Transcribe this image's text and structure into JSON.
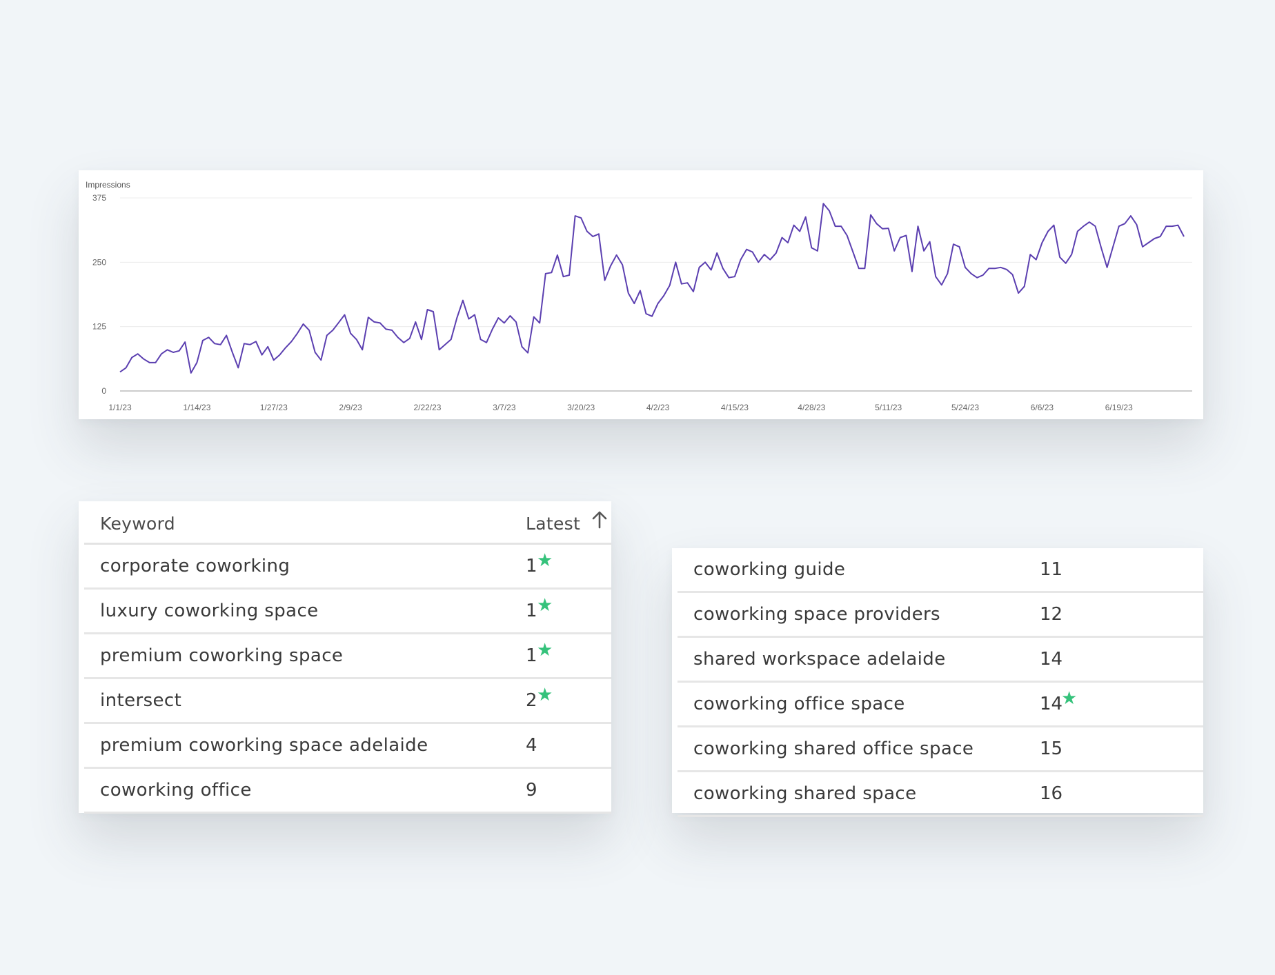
{
  "chart_data": {
    "type": "line",
    "ylabel": "Impressions",
    "y_ticks": [
      0,
      125,
      250,
      375
    ],
    "ylim": [
      0,
      375
    ],
    "x_tick_labels": [
      "1/1/23",
      "1/14/23",
      "1/27/23",
      "2/9/23",
      "2/22/23",
      "3/7/23",
      "3/20/23",
      "4/2/23",
      "4/15/23",
      "4/28/23",
      "5/11/23",
      "5/24/23",
      "6/6/23",
      "6/19/23"
    ],
    "x_tick_days": [
      0,
      13,
      26,
      39,
      52,
      65,
      78,
      91,
      104,
      117,
      130,
      143,
      156,
      169
    ],
    "x_start": "2023-01-01",
    "x_end": "2023-06-30",
    "color": "#5b3fb0",
    "series": [
      {
        "values": [
          37,
          45,
          65,
          72,
          62,
          55,
          55,
          72,
          80,
          75,
          78,
          95,
          35,
          55,
          98,
          104,
          92,
          90,
          108,
          75,
          45,
          92,
          90,
          96,
          70,
          86,
          60,
          70,
          84,
          96,
          112,
          130,
          118,
          75,
          60,
          108,
          118,
          133,
          148,
          112,
          100,
          80,
          143,
          134,
          132,
          120,
          118,
          104,
          94,
          102,
          134,
          100,
          158,
          154,
          80,
          90,
          100,
          142,
          176,
          140,
          148,
          100,
          94,
          120,
          142,
          132,
          146,
          134,
          86,
          74,
          144,
          132,
          228,
          230,
          264,
          222,
          225,
          340,
          336,
          310,
          300,
          305,
          215,
          243,
          264,
          245,
          190,
          170,
          195,
          150,
          145,
          170,
          185,
          205,
          250,
          208,
          210,
          193,
          240,
          250,
          235,
          268,
          238,
          220,
          222,
          255,
          275,
          270,
          250,
          265,
          255,
          268,
          298,
          288,
          322,
          310,
          338,
          278,
          272,
          364,
          350,
          320,
          320,
          302,
          270,
          238,
          238,
          342,
          325,
          315,
          316,
          272,
          298,
          302,
          232,
          320,
          272,
          290,
          222,
          206,
          228,
          285,
          280,
          240,
          228,
          220,
          225,
          238,
          238,
          240,
          236,
          226,
          190,
          203,
          265,
          255,
          288,
          310,
          322,
          260,
          248,
          265,
          310,
          320,
          328,
          320,
          278,
          240,
          280,
          320,
          325,
          340,
          323,
          280,
          288,
          296,
          300,
          320,
          320,
          322,
          300
        ]
      }
    ]
  },
  "table_left": {
    "header": {
      "keyword": "Keyword",
      "latest": "Latest"
    },
    "rows": [
      {
        "keyword": "corporate coworking",
        "latest": "1",
        "star": true
      },
      {
        "keyword": "luxury coworking space",
        "latest": "1",
        "star": true
      },
      {
        "keyword": "premium coworking space",
        "latest": "1",
        "star": true
      },
      {
        "keyword": "intersect",
        "latest": "2",
        "star": true
      },
      {
        "keyword": "premium coworking space adelaide",
        "latest": "4",
        "star": false
      },
      {
        "keyword": "coworking office",
        "latest": "9",
        "star": false
      }
    ]
  },
  "table_right": {
    "rows": [
      {
        "keyword": "coworking guide",
        "latest": "11",
        "star": false
      },
      {
        "keyword": "coworking space providers",
        "latest": "12",
        "star": false
      },
      {
        "keyword": "shared workspace adelaide",
        "latest": "14",
        "star": false
      },
      {
        "keyword": "coworking office space",
        "latest": "14",
        "star": true
      },
      {
        "keyword": "coworking shared office space",
        "latest": "15",
        "star": false
      },
      {
        "keyword": "coworking shared space",
        "latest": "16",
        "star": false
      }
    ]
  },
  "icons": {
    "sort": "arrow-up-icon",
    "highlight": "star-icon"
  },
  "colors": {
    "star": "#35c27b",
    "line": "#5b3fb0",
    "background": "#f1f5f8"
  }
}
